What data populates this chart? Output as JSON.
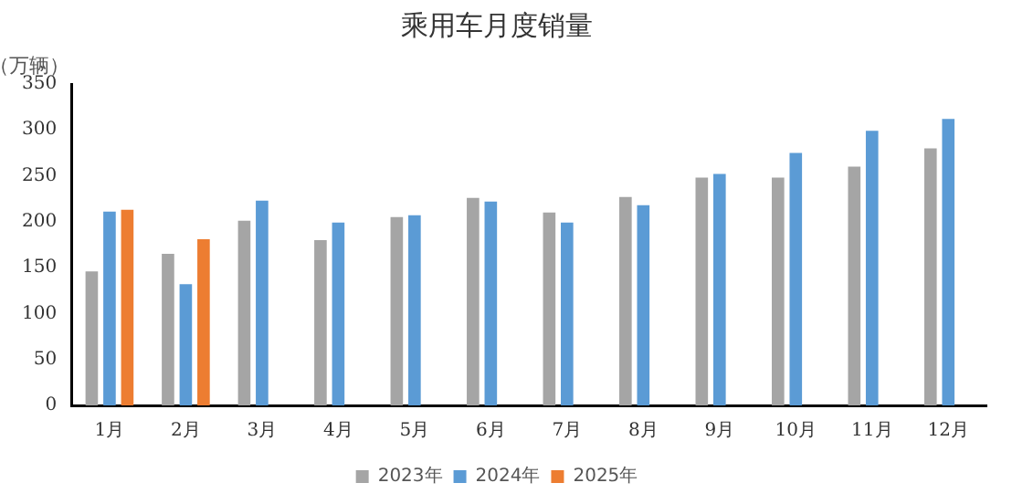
{
  "chart_data": {
    "type": "bar",
    "title": "乘用车月度销量",
    "ylabel": "（万辆）",
    "categories": [
      "1月",
      "2月",
      "3月",
      "4月",
      "5月",
      "6月",
      "7月",
      "8月",
      "9月",
      "10月",
      "11月",
      "12月"
    ],
    "series": [
      {
        "name": "2023年",
        "color": "#a5a5a5",
        "values": [
          146,
          165,
          201,
          180,
          205,
          226,
          210,
          227,
          248,
          248,
          260,
          280
        ]
      },
      {
        "name": "2024年",
        "color": "#5b9bd5",
        "values": [
          211,
          132,
          223,
          199,
          207,
          222,
          199,
          218,
          252,
          275,
          299,
          312
        ]
      },
      {
        "name": "2025年",
        "color": "#ed7d31",
        "values": [
          213,
          181,
          null,
          null,
          null,
          null,
          null,
          null,
          null,
          null,
          null,
          null
        ]
      }
    ],
    "ylim": [
      0,
      350
    ],
    "yticks": [
      0,
      50,
      100,
      150,
      200,
      250,
      300,
      350
    ],
    "grid": false,
    "legend": "bottom"
  }
}
